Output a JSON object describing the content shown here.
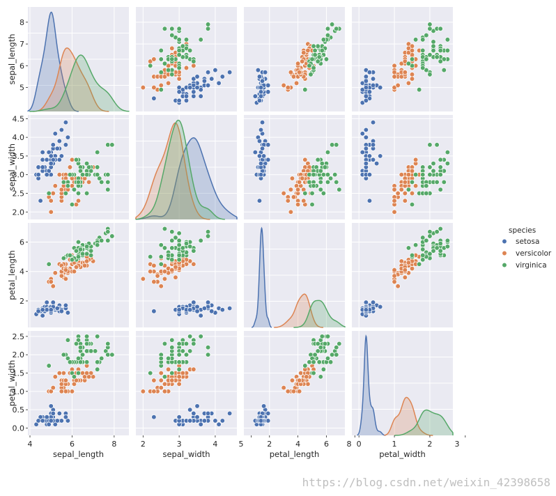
{
  "chart_data": {
    "type": "scatter",
    "variables": [
      "sepal_length",
      "sepal_width",
      "petal_length",
      "petal_width"
    ],
    "axis_ranges": {
      "sepal_length": [
        3.9,
        8.7
      ],
      "sepal_width": [
        1.8,
        4.6
      ],
      "petal_length": [
        0.2,
        7.3
      ],
      "petal_width": [
        -0.2,
        2.65
      ]
    },
    "ticks": {
      "sepal_length": [
        5,
        6,
        7,
        8
      ],
      "sepal_width": [
        2.0,
        2.5,
        3.0,
        3.5,
        4.0,
        4.5
      ],
      "petal_length": [
        2,
        4,
        6
      ],
      "petal_width": [
        0.0,
        0.5,
        1.0,
        1.5,
        2.0,
        2.5
      ]
    },
    "bottom_ticks": {
      "sepal_length": [
        4,
        6,
        8
      ],
      "sepal_width": [
        2,
        3,
        4,
        5
      ],
      "petal_length": [
        2,
        4,
        6,
        8
      ],
      "petal_width": [
        0,
        1,
        2,
        3
      ]
    },
    "grid": true,
    "legend": {
      "title": "species",
      "placement": "right"
    },
    "series": [
      {
        "name": "setosa",
        "color": "#4c72b0",
        "points": [
          [
            5.1,
            3.5,
            1.4,
            0.2
          ],
          [
            4.9,
            3.0,
            1.4,
            0.2
          ],
          [
            4.7,
            3.2,
            1.3,
            0.2
          ],
          [
            4.6,
            3.1,
            1.5,
            0.2
          ],
          [
            5.0,
            3.6,
            1.4,
            0.2
          ],
          [
            5.4,
            3.9,
            1.7,
            0.4
          ],
          [
            4.6,
            3.4,
            1.4,
            0.3
          ],
          [
            5.0,
            3.4,
            1.5,
            0.2
          ],
          [
            4.4,
            2.9,
            1.4,
            0.2
          ],
          [
            4.9,
            3.1,
            1.5,
            0.1
          ],
          [
            5.4,
            3.7,
            1.5,
            0.2
          ],
          [
            4.8,
            3.4,
            1.6,
            0.2
          ],
          [
            4.8,
            3.0,
            1.4,
            0.1
          ],
          [
            4.3,
            3.0,
            1.1,
            0.1
          ],
          [
            5.8,
            4.0,
            1.2,
            0.2
          ],
          [
            5.7,
            4.4,
            1.5,
            0.4
          ],
          [
            5.4,
            3.9,
            1.3,
            0.4
          ],
          [
            5.1,
            3.5,
            1.4,
            0.3
          ],
          [
            5.7,
            3.8,
            1.7,
            0.3
          ],
          [
            5.1,
            3.8,
            1.5,
            0.3
          ],
          [
            5.4,
            3.4,
            1.7,
            0.2
          ],
          [
            5.1,
            3.7,
            1.5,
            0.4
          ],
          [
            4.6,
            3.6,
            1.0,
            0.2
          ],
          [
            5.1,
            3.3,
            1.7,
            0.5
          ],
          [
            4.8,
            3.4,
            1.9,
            0.2
          ],
          [
            5.0,
            3.0,
            1.6,
            0.2
          ],
          [
            5.0,
            3.4,
            1.6,
            0.4
          ],
          [
            5.2,
            3.5,
            1.5,
            0.2
          ],
          [
            5.2,
            3.4,
            1.4,
            0.2
          ],
          [
            4.7,
            3.2,
            1.6,
            0.2
          ],
          [
            4.8,
            3.1,
            1.6,
            0.2
          ],
          [
            5.4,
            3.4,
            1.5,
            0.4
          ],
          [
            5.2,
            4.1,
            1.5,
            0.1
          ],
          [
            5.5,
            4.2,
            1.4,
            0.2
          ],
          [
            4.9,
            3.1,
            1.5,
            0.2
          ],
          [
            5.0,
            3.2,
            1.2,
            0.2
          ],
          [
            5.5,
            3.5,
            1.3,
            0.2
          ],
          [
            4.9,
            3.6,
            1.4,
            0.1
          ],
          [
            4.4,
            3.0,
            1.3,
            0.2
          ],
          [
            5.1,
            3.4,
            1.5,
            0.2
          ],
          [
            5.0,
            3.5,
            1.3,
            0.3
          ],
          [
            4.5,
            2.3,
            1.3,
            0.3
          ],
          [
            4.4,
            3.2,
            1.3,
            0.2
          ],
          [
            5.0,
            3.5,
            1.6,
            0.6
          ],
          [
            5.1,
            3.8,
            1.9,
            0.4
          ],
          [
            4.8,
            3.0,
            1.4,
            0.3
          ],
          [
            5.1,
            3.8,
            1.6,
            0.2
          ],
          [
            4.6,
            3.2,
            1.4,
            0.2
          ],
          [
            5.3,
            3.7,
            1.5,
            0.2
          ],
          [
            5.0,
            3.3,
            1.4,
            0.2
          ]
        ]
      },
      {
        "name": "versicolor",
        "color": "#dd8452",
        "points": [
          [
            7.0,
            3.2,
            4.7,
            1.4
          ],
          [
            6.4,
            3.2,
            4.5,
            1.5
          ],
          [
            6.9,
            3.1,
            4.9,
            1.5
          ],
          [
            5.5,
            2.3,
            4.0,
            1.3
          ],
          [
            6.5,
            2.8,
            4.6,
            1.5
          ],
          [
            5.7,
            2.8,
            4.5,
            1.3
          ],
          [
            6.3,
            3.3,
            4.7,
            1.6
          ],
          [
            4.9,
            2.4,
            3.3,
            1.0
          ],
          [
            6.6,
            2.9,
            4.6,
            1.3
          ],
          [
            5.2,
            2.7,
            3.9,
            1.4
          ],
          [
            5.0,
            2.0,
            3.5,
            1.0
          ],
          [
            5.9,
            3.0,
            4.2,
            1.5
          ],
          [
            6.0,
            2.2,
            4.0,
            1.0
          ],
          [
            6.1,
            2.9,
            4.7,
            1.4
          ],
          [
            5.6,
            2.9,
            3.6,
            1.3
          ],
          [
            6.7,
            3.1,
            4.4,
            1.4
          ],
          [
            5.6,
            3.0,
            4.5,
            1.5
          ],
          [
            5.8,
            2.7,
            4.1,
            1.0
          ],
          [
            6.2,
            2.2,
            4.5,
            1.5
          ],
          [
            5.6,
            2.5,
            3.9,
            1.1
          ],
          [
            5.9,
            3.2,
            4.8,
            1.8
          ],
          [
            6.1,
            2.8,
            4.0,
            1.3
          ],
          [
            6.3,
            2.5,
            4.9,
            1.5
          ],
          [
            6.1,
            2.8,
            4.7,
            1.2
          ],
          [
            6.4,
            2.9,
            4.3,
            1.3
          ],
          [
            6.6,
            3.0,
            4.4,
            1.4
          ],
          [
            6.8,
            2.8,
            4.8,
            1.4
          ],
          [
            6.7,
            3.0,
            5.0,
            1.7
          ],
          [
            6.0,
            2.9,
            4.5,
            1.5
          ],
          [
            5.7,
            2.6,
            3.5,
            1.0
          ],
          [
            5.5,
            2.4,
            3.8,
            1.1
          ],
          [
            5.5,
            2.4,
            3.7,
            1.0
          ],
          [
            5.8,
            2.7,
            3.9,
            1.2
          ],
          [
            6.0,
            2.7,
            5.1,
            1.6
          ],
          [
            5.4,
            3.0,
            4.5,
            1.5
          ],
          [
            6.0,
            3.4,
            4.5,
            1.6
          ],
          [
            6.7,
            3.1,
            4.7,
            1.5
          ],
          [
            6.3,
            2.3,
            4.4,
            1.3
          ],
          [
            5.6,
            3.0,
            4.1,
            1.3
          ],
          [
            5.5,
            2.5,
            4.0,
            1.3
          ],
          [
            5.5,
            2.6,
            4.4,
            1.2
          ],
          [
            6.1,
            3.0,
            4.6,
            1.4
          ],
          [
            5.8,
            2.6,
            4.0,
            1.2
          ],
          [
            5.0,
            2.3,
            3.3,
            1.0
          ],
          [
            5.6,
            2.7,
            4.2,
            1.3
          ],
          [
            5.7,
            3.0,
            4.2,
            1.2
          ],
          [
            5.7,
            2.9,
            4.2,
            1.3
          ],
          [
            6.2,
            2.9,
            4.3,
            1.3
          ],
          [
            5.1,
            2.5,
            3.0,
            1.1
          ],
          [
            5.7,
            2.8,
            4.1,
            1.3
          ]
        ]
      },
      {
        "name": "virginica",
        "color": "#55a868",
        "points": [
          [
            6.3,
            3.3,
            6.0,
            2.5
          ],
          [
            5.8,
            2.7,
            5.1,
            1.9
          ],
          [
            7.1,
            3.0,
            5.9,
            2.1
          ],
          [
            6.3,
            2.9,
            5.6,
            1.8
          ],
          [
            6.5,
            3.0,
            5.8,
            2.2
          ],
          [
            7.6,
            3.0,
            6.6,
            2.1
          ],
          [
            4.9,
            2.5,
            4.5,
            1.7
          ],
          [
            7.3,
            2.9,
            6.3,
            1.8
          ],
          [
            6.7,
            2.5,
            5.8,
            1.8
          ],
          [
            7.2,
            3.6,
            6.1,
            2.5
          ],
          [
            6.5,
            3.2,
            5.1,
            2.0
          ],
          [
            6.4,
            2.7,
            5.3,
            1.9
          ],
          [
            6.8,
            3.0,
            5.5,
            2.1
          ],
          [
            5.7,
            2.5,
            5.0,
            2.0
          ],
          [
            5.8,
            2.8,
            5.1,
            2.4
          ],
          [
            6.4,
            3.2,
            5.3,
            2.3
          ],
          [
            6.5,
            3.0,
            5.5,
            1.8
          ],
          [
            7.7,
            3.8,
            6.7,
            2.2
          ],
          [
            7.7,
            2.6,
            6.9,
            2.3
          ],
          [
            6.0,
            2.2,
            5.0,
            1.5
          ],
          [
            6.9,
            3.2,
            5.7,
            2.3
          ],
          [
            5.6,
            2.8,
            4.9,
            2.0
          ],
          [
            7.7,
            2.8,
            6.7,
            2.0
          ],
          [
            6.3,
            2.7,
            4.9,
            1.8
          ],
          [
            6.7,
            3.3,
            5.7,
            2.1
          ],
          [
            7.2,
            3.2,
            6.0,
            1.8
          ],
          [
            6.2,
            2.8,
            4.8,
            1.8
          ],
          [
            6.1,
            3.0,
            4.9,
            1.8
          ],
          [
            6.4,
            2.8,
            5.6,
            2.1
          ],
          [
            7.2,
            3.0,
            5.8,
            1.6
          ],
          [
            7.4,
            2.8,
            6.1,
            1.9
          ],
          [
            7.9,
            3.8,
            6.4,
            2.0
          ],
          [
            6.4,
            2.8,
            5.6,
            2.2
          ],
          [
            6.3,
            2.8,
            5.1,
            1.5
          ],
          [
            6.1,
            2.6,
            5.6,
            1.4
          ],
          [
            7.7,
            3.0,
            6.1,
            2.3
          ],
          [
            6.3,
            3.4,
            5.6,
            2.4
          ],
          [
            6.4,
            3.1,
            5.5,
            1.8
          ],
          [
            6.0,
            3.0,
            4.8,
            1.8
          ],
          [
            6.9,
            3.1,
            5.4,
            2.1
          ],
          [
            6.7,
            3.1,
            5.6,
            2.4
          ],
          [
            6.9,
            3.1,
            5.1,
            2.3
          ],
          [
            5.8,
            2.7,
            5.1,
            1.9
          ],
          [
            6.8,
            3.2,
            5.9,
            2.3
          ],
          [
            6.7,
            3.3,
            5.7,
            2.5
          ],
          [
            6.7,
            3.0,
            5.2,
            2.3
          ],
          [
            6.3,
            2.5,
            5.0,
            1.9
          ],
          [
            6.5,
            3.0,
            5.2,
            2.0
          ],
          [
            6.2,
            3.4,
            5.4,
            2.3
          ],
          [
            5.9,
            3.0,
            5.1,
            1.8
          ]
        ]
      }
    ],
    "watermark": "https://blog.csdn.net/weixin_42398658"
  }
}
